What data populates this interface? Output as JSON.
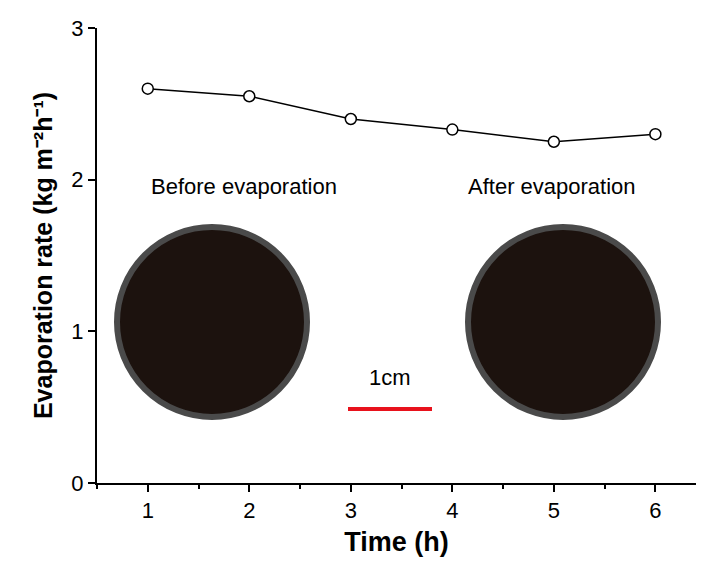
{
  "chart_data": {
    "type": "line",
    "x_label": "Time (h)",
    "y_label": "Evaporation rate (kg m⁻²h⁻¹)",
    "x": [
      1,
      2,
      3,
      4,
      5,
      6
    ],
    "values": [
      2.6,
      2.55,
      2.4,
      2.33,
      2.25,
      2.3
    ],
    "color": "#000000",
    "marker": "circle",
    "line_style": "solid",
    "xlim": [
      0.5,
      6.4
    ],
    "xticks": [
      1,
      2,
      3,
      4,
      5,
      6
    ],
    "ylim": [
      0,
      3
    ],
    "yticks": [
      0,
      1,
      2,
      3
    ],
    "grid": false,
    "annotations": [
      "Before evaporation",
      "After evaporation",
      "1cm"
    ]
  }
}
